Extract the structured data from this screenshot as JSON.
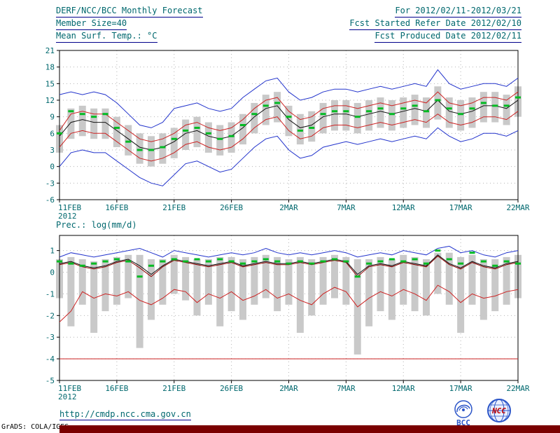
{
  "header": {
    "title": "DERF/NCC/BCC Monthly Forecast",
    "member_size": "Member Size=40",
    "period": "For 2012/02/11-2012/03/21",
    "refer_date": "Fcst Started Refer Date 2012/02/10",
    "produced_date": "Fcst Produced Date 2012/02/11"
  },
  "footer": {
    "url": "http://cmdp.ncc.cma.gov.cn",
    "credit": "GrADS: COLA/IGES",
    "bcc_label": "BCC",
    "ncc_label": "NCC"
  },
  "colors": {
    "teal": "#00686e",
    "navy": "#00008b",
    "axis": "#000000",
    "grid": "#b4b4b4",
    "bar": "#c9c9c9",
    "blue": "#2233cc",
    "red": "#cc2222",
    "darkred": "#8b0000",
    "black": "#111111",
    "green": "#00bb22",
    "maroon": "#7a0000",
    "logo_blue": "#2b55c8",
    "logo_red": "#c00000"
  },
  "chart_data": [
    {
      "type": "line",
      "title": "Mean Surf. Temp.: °C",
      "x_tick_labels": [
        "11FEB",
        "16FEB",
        "21FEB",
        "26FEB",
        "2MAR",
        "7MAR",
        "12MAR",
        "17MAR",
        "22MAR"
      ],
      "x_first_tick_year": "2012",
      "ylim": [
        -6,
        21
      ],
      "yticks": [
        21,
        18,
        15,
        12,
        9,
        6,
        3,
        0,
        -3,
        -6
      ],
      "n_points": 41,
      "grid": true,
      "legend": "none",
      "series": [
        {
          "name": "ensemble-max",
          "color": "blue",
          "values": [
            13,
            13.5,
            13,
            13.5,
            13,
            11.5,
            9.5,
            7.5,
            7,
            8,
            10.5,
            11,
            11.5,
            10.5,
            10,
            10.5,
            12.5,
            14,
            15.5,
            16,
            13.5,
            12,
            12.5,
            13.5,
            14,
            14,
            13.5,
            14,
            14.5,
            14,
            14.5,
            15,
            14.5,
            17.5,
            15,
            14,
            14.5,
            15,
            15,
            14.5,
            16
          ]
        },
        {
          "name": "upper-percentile",
          "color": "red",
          "values": [
            6.5,
            9.5,
            10,
            9.5,
            9.5,
            8,
            6.5,
            5,
            4.5,
            5,
            6,
            7.5,
            8,
            7,
            6.5,
            7,
            8.5,
            10.5,
            12,
            12.5,
            10,
            8.5,
            9,
            10.5,
            11,
            11,
            10.5,
            11,
            11.5,
            11,
            11.5,
            12,
            11.5,
            13.5,
            11.5,
            11,
            11.5,
            12.5,
            12.5,
            12,
            13.5
          ]
        },
        {
          "name": "lower-percentile",
          "color": "red",
          "values": [
            3.5,
            6,
            6.5,
            6,
            6,
            4.5,
            3,
            1.5,
            1,
            1.5,
            2.5,
            4,
            4.5,
            3.5,
            3,
            3.5,
            5,
            7,
            8.5,
            9,
            6.5,
            5,
            5.5,
            7,
            7.5,
            7.5,
            7,
            7.5,
            8,
            7.5,
            8,
            8.5,
            8,
            9.5,
            8,
            7.5,
            8,
            9,
            9,
            8.5,
            10
          ]
        },
        {
          "name": "ensemble-min",
          "color": "blue",
          "values": [
            0,
            2.5,
            3,
            2.5,
            2.5,
            1,
            -0.5,
            -2,
            -3,
            -3.5,
            -1.5,
            0.5,
            1,
            0,
            -1,
            -0.5,
            1.5,
            3.5,
            5,
            5.5,
            3,
            1.5,
            2,
            3.5,
            4,
            4.5,
            4,
            4.5,
            5,
            4.5,
            5,
            5.5,
            5,
            7,
            5.5,
            4.5,
            5,
            6,
            6,
            5.5,
            6.5
          ]
        },
        {
          "name": "ensemble-mean",
          "color": "black",
          "values": [
            5.5,
            8,
            8.5,
            8,
            8,
            6.5,
            5,
            3.5,
            3,
            3.5,
            4.5,
            6,
            6.5,
            5.5,
            5,
            5.5,
            7,
            9,
            10.5,
            11,
            8.5,
            7,
            7.5,
            9,
            9.5,
            9.5,
            9,
            9.5,
            10,
            9.5,
            10,
            10.5,
            10,
            12,
            10,
            9.5,
            10,
            11,
            11,
            10.5,
            12
          ]
        }
      ],
      "bars": {
        "name": "ensemble-spread-bars",
        "top": [
          7.5,
          10.5,
          11,
          10.5,
          10.5,
          9,
          7.5,
          6,
          5.5,
          6,
          7,
          8.5,
          9,
          8,
          7.5,
          8,
          9.5,
          11.5,
          13,
          13.5,
          11,
          9.5,
          10,
          11.5,
          12,
          12,
          11.5,
          12,
          12.5,
          12,
          12.5,
          13,
          12.5,
          14.5,
          12.5,
          12,
          12.5,
          13.5,
          13.5,
          13,
          14.5
        ],
        "bottom": [
          2.5,
          5,
          5.5,
          5,
          5,
          3.5,
          2,
          0.5,
          0,
          0.5,
          1.5,
          3,
          3.5,
          2.5,
          2,
          2.5,
          4,
          6,
          7.5,
          8,
          5.5,
          4,
          4.5,
          6,
          6.5,
          6.5,
          6,
          6.5,
          7,
          6.5,
          7,
          7.5,
          7,
          8.5,
          7,
          6.5,
          7,
          8,
          8,
          7.5,
          9
        ]
      },
      "obs_dashes": {
        "name": "observation-dashes",
        "values": [
          6,
          10,
          9.5,
          9,
          9.5,
          7,
          4.5,
          3,
          3,
          3.5,
          5,
          6.5,
          7,
          6,
          5,
          5.5,
          7.5,
          9.5,
          11,
          11.5,
          9,
          6.5,
          7,
          9.5,
          10,
          10,
          9,
          10,
          10.5,
          9.5,
          10.5,
          11,
          10,
          12,
          10.5,
          9.5,
          10.5,
          11.5,
          11,
          11,
          12.5
        ]
      }
    },
    {
      "type": "line",
      "title": "Prec.: log(mm/d)",
      "x_tick_labels": [
        "11FEB",
        "16FEB",
        "21FEB",
        "26FEB",
        "2MAR",
        "7MAR",
        "12MAR",
        "17MAR",
        "22MAR"
      ],
      "x_first_tick_year": "2012",
      "ylim": [
        -5,
        1.7
      ],
      "yticks": [
        1,
        0,
        -1,
        -2,
        -3,
        -4,
        -5
      ],
      "n_points": 41,
      "grid": true,
      "legend": "none",
      "series": [
        {
          "name": "ensemble-max",
          "color": "blue",
          "values": [
            0.7,
            0.9,
            0.8,
            0.7,
            0.8,
            0.9,
            1.0,
            1.1,
            0.9,
            0.7,
            1.0,
            0.9,
            0.8,
            0.7,
            0.8,
            0.9,
            0.8,
            0.9,
            1.1,
            0.9,
            0.8,
            0.9,
            0.8,
            0.9,
            1.0,
            0.9,
            0.7,
            0.8,
            0.9,
            0.8,
            1.0,
            0.9,
            0.8,
            1.1,
            1.2,
            0.9,
            1.0,
            0.8,
            0.7,
            0.9,
            1.0
          ]
        },
        {
          "name": "lower-percentile",
          "color": "red",
          "values": [
            -2.3,
            -1.8,
            -0.9,
            -1.2,
            -1.0,
            -1.1,
            -0.9,
            -1.3,
            -1.5,
            -1.2,
            -0.8,
            -0.9,
            -1.4,
            -1.0,
            -1.2,
            -0.9,
            -1.3,
            -1.1,
            -0.8,
            -1.2,
            -1.0,
            -1.3,
            -1.5,
            -1.0,
            -0.7,
            -0.9,
            -1.6,
            -1.2,
            -0.9,
            -1.1,
            -0.8,
            -1.0,
            -1.3,
            -0.6,
            -0.9,
            -1.4,
            -1.0,
            -1.2,
            -1.1,
            -0.9,
            -0.8
          ]
        },
        {
          "name": "ensemble-min-flat",
          "color": "red",
          "constant": -4
        },
        {
          "name": "median",
          "color": "darkred",
          "values": [
            0.35,
            0.45,
            0.25,
            0.15,
            0.25,
            0.45,
            0.55,
            0.2,
            -0.2,
            0.25,
            0.55,
            0.45,
            0.35,
            0.25,
            0.35,
            0.45,
            0.25,
            0.35,
            0.45,
            0.35,
            0.35,
            0.45,
            0.35,
            0.45,
            0.55,
            0.45,
            -0.2,
            0.25,
            0.35,
            0.25,
            0.45,
            0.35,
            0.25,
            0.75,
            0.35,
            0.15,
            0.45,
            0.25,
            0.15,
            0.35,
            0.45
          ]
        },
        {
          "name": "ensemble-mean",
          "color": "black",
          "values": [
            0.4,
            0.5,
            0.3,
            0.2,
            0.3,
            0.5,
            0.6,
            0.3,
            -0.1,
            0.3,
            0.6,
            0.5,
            0.4,
            0.3,
            0.4,
            0.5,
            0.3,
            0.4,
            0.5,
            0.4,
            0.4,
            0.5,
            0.4,
            0.5,
            0.6,
            0.5,
            -0.1,
            0.3,
            0.4,
            0.3,
            0.5,
            0.4,
            0.3,
            0.8,
            0.4,
            0.2,
            0.5,
            0.3,
            0.2,
            0.4,
            0.5
          ]
        }
      ],
      "bars": {
        "name": "ensemble-spread-bars",
        "top": [
          0.6,
          0.7,
          0.6,
          0.5,
          0.6,
          0.7,
          0.8,
          0.8,
          0.6,
          0.6,
          0.8,
          0.7,
          0.6,
          0.6,
          0.7,
          0.7,
          0.6,
          0.7,
          0.8,
          0.7,
          0.6,
          0.7,
          0.6,
          0.7,
          0.8,
          0.7,
          0.6,
          0.6,
          0.7,
          0.6,
          0.8,
          0.7,
          0.6,
          0.9,
          0.9,
          0.7,
          0.8,
          0.6,
          0.6,
          0.7,
          0.8
        ],
        "bottom": [
          -1.2,
          -2.5,
          -1.5,
          -2.8,
          -1.8,
          -1.5,
          -1.2,
          -3.5,
          -2.2,
          -1.5,
          -1.0,
          -1.3,
          -2.0,
          -1.5,
          -2.5,
          -1.8,
          -2.2,
          -1.5,
          -1.2,
          -1.8,
          -1.5,
          -2.8,
          -2.0,
          -1.5,
          -1.2,
          -1.5,
          -3.8,
          -2.5,
          -1.8,
          -2.2,
          -1.5,
          -1.8,
          -2.0,
          -1.0,
          -1.5,
          -2.8,
          -1.5,
          -2.2,
          -1.8,
          -1.5,
          -1.2
        ]
      },
      "obs_dashes": {
        "name": "observation-dashes",
        "values": [
          0.5,
          0.4,
          0.3,
          0.4,
          0.5,
          0.6,
          0.5,
          -0.2,
          0.3,
          0.5,
          0.6,
          0.5,
          0.6,
          0.5,
          0.6,
          0.5,
          0.4,
          0.5,
          0.6,
          0.5,
          0.4,
          0.5,
          0.4,
          0.5,
          0.6,
          0.5,
          -0.2,
          0.4,
          0.5,
          0.6,
          0.5,
          0.6,
          0.4,
          1.0,
          0.6,
          0.4,
          0.9,
          0.5,
          0.3,
          0.5,
          0.4
        ]
      }
    }
  ]
}
